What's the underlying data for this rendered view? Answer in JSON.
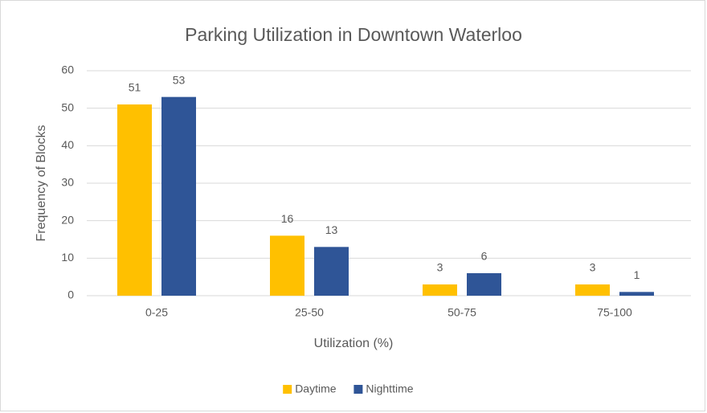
{
  "chart_data": {
    "type": "bar",
    "title": "Parking Utilization in Downtown Waterloo",
    "x_label": "Utilization (%)",
    "y_label": "Frequency of Blocks",
    "categories": [
      "0-25",
      "25-50",
      "50-75",
      "75-100"
    ],
    "series": [
      {
        "name": "Daytime",
        "color": "#ffc000",
        "values": [
          51,
          16,
          3,
          3
        ]
      },
      {
        "name": "Nighttime",
        "color": "#2f5597",
        "values": [
          53,
          13,
          6,
          1
        ]
      }
    ],
    "ylim": [
      0,
      60
    ],
    "yticks": [
      0,
      10,
      20,
      30,
      40,
      50,
      60
    ],
    "grid": true,
    "legend": "bottom"
  }
}
